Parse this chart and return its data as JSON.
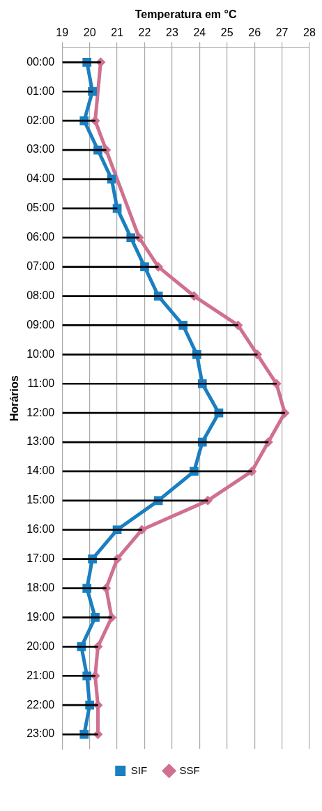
{
  "chart_data": {
    "type": "line",
    "orientation": "horizontal",
    "xlabel": "Temperatura em °C",
    "ylabel": "Horários",
    "categories": [
      "00:00",
      "01:00",
      "02:00",
      "03:00",
      "04:00",
      "05:00",
      "06:00",
      "07:00",
      "08:00",
      "09:00",
      "10:00",
      "11:00",
      "12:00",
      "13:00",
      "14:00",
      "15:00",
      "16:00",
      "17:00",
      "18:00",
      "19:00",
      "20:00",
      "21:00",
      "22:00",
      "23:00"
    ],
    "series": [
      {
        "name": "SIF",
        "color": "#1a7fc1",
        "marker": "square",
        "values": [
          19.9,
          20.1,
          19.8,
          20.3,
          20.8,
          21.0,
          21.5,
          22.0,
          22.5,
          23.4,
          23.9,
          24.1,
          24.7,
          24.1,
          23.8,
          22.5,
          21.0,
          20.1,
          19.9,
          20.2,
          19.7,
          19.9,
          20.0,
          19.8
        ]
      },
      {
        "name": "SSF",
        "color": "#d0708f",
        "marker": "diamond",
        "values": [
          20.4,
          null,
          20.2,
          20.6,
          null,
          null,
          21.8,
          22.5,
          23.8,
          25.4,
          26.1,
          26.8,
          27.1,
          26.5,
          25.9,
          24.3,
          21.9,
          21.0,
          20.6,
          20.8,
          20.3,
          20.2,
          20.3,
          20.3
        ]
      },
      {
        "type": "bar",
        "color": "#000000",
        "values": [
          20.4,
          20.1,
          20.2,
          20.6,
          20.8,
          21.0,
          21.8,
          22.5,
          23.8,
          25.4,
          26.1,
          26.8,
          27.1,
          26.5,
          25.9,
          24.3,
          21.9,
          21.0,
          20.6,
          20.8,
          20.3,
          20.2,
          20.3,
          20.3
        ]
      }
    ],
    "xlim": [
      19,
      28
    ],
    "xticks": [
      19,
      20,
      21,
      22,
      23,
      24,
      25,
      26,
      27,
      28
    ],
    "grid": "x",
    "legend": "bottom",
    "line_style": "solid"
  }
}
